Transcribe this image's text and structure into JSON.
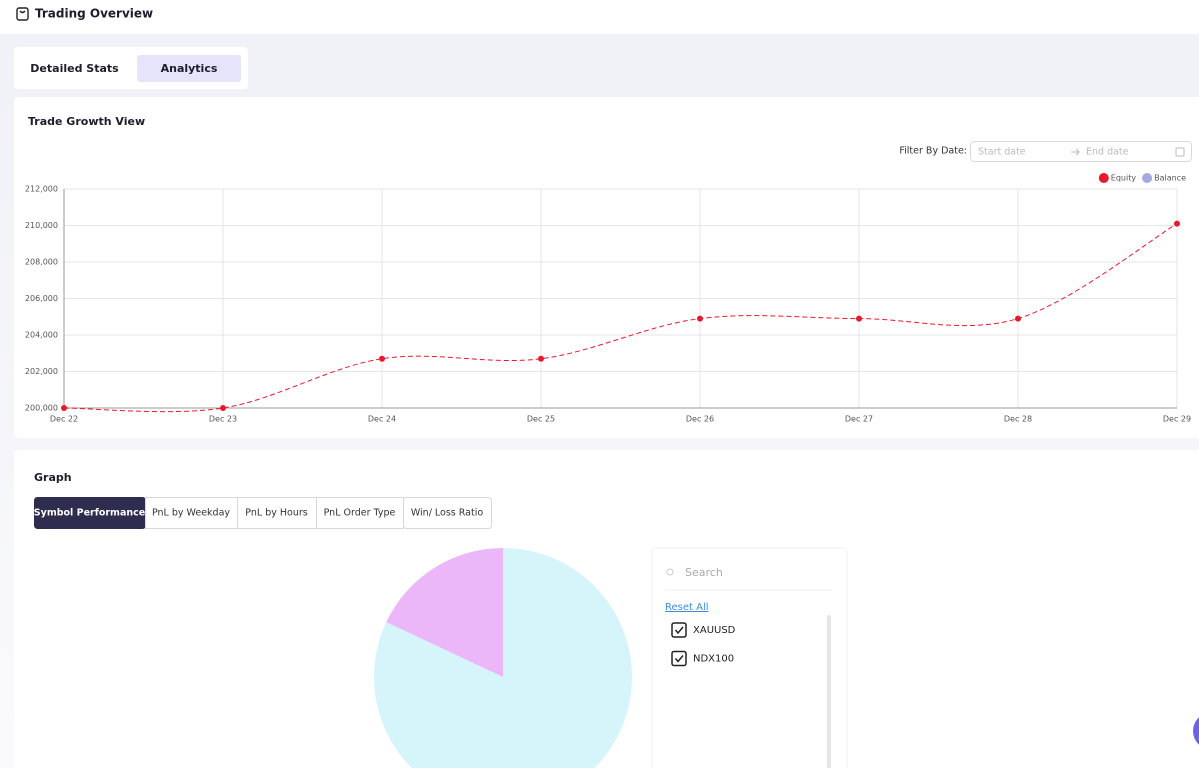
{
  "header": {
    "title": "Trading Overview"
  },
  "tabs": {
    "items": [
      "Detailed Stats",
      "Analytics"
    ],
    "active": 1
  },
  "growth_card": {
    "title": "Trade Growth View",
    "filter_label": "Filter By Date:",
    "start_placeholder": "Start date",
    "end_placeholder": "End date"
  },
  "graph_card": {
    "title": "Graph",
    "tabs": [
      "Symbol Performance",
      "PnL by Weekday",
      "PnL by Hours",
      "PnL Order Type",
      "Win/ Loss Ratio"
    ],
    "active": 0,
    "search_placeholder": "Search",
    "reset": "Reset All"
  },
  "chart_data": [
    {
      "type": "line",
      "categories": [
        "Dec 22",
        "Dec 23",
        "Dec 24",
        "Dec 25",
        "Dec 26",
        "Dec 27",
        "Dec 28",
        "Dec 29"
      ],
      "series": [
        {
          "name": "Equity",
          "color": "#e8192c",
          "values": [
            200000,
            200000,
            202700,
            202700,
            204900,
            204900,
            204900,
            210100
          ]
        },
        {
          "name": "Balance",
          "color": "#a4a9e3",
          "values": [
            null,
            null,
            null,
            null,
            null,
            null,
            null,
            null
          ]
        }
      ],
      "ylim": [
        200000,
        212000
      ],
      "yticks": [
        {
          "value": 200000,
          "label": "200,000"
        },
        {
          "value": 202000,
          "label": "202,000"
        },
        {
          "value": 204000,
          "label": "204,000"
        },
        {
          "value": 206000,
          "label": "206,000"
        },
        {
          "value": 208000,
          "label": "208,000"
        },
        {
          "value": 210000,
          "label": "210,000"
        },
        {
          "value": 212000,
          "label": "212,000"
        }
      ],
      "grid": true,
      "legend": "top-right"
    },
    {
      "type": "pie",
      "categories": [
        "XAUUSD",
        "NDX100"
      ],
      "values": [
        82,
        18
      ],
      "colors": [
        "#d5f5fb",
        "#ebb7f8"
      ]
    }
  ]
}
